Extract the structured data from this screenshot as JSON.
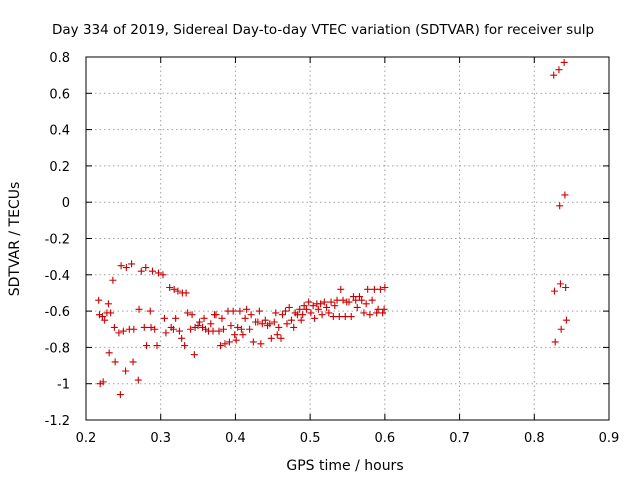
{
  "chart_data": {
    "type": "scatter",
    "title": "Day 334 of 2019, Sidereal Day-to-day VTEC variation (SDTVAR) for receiver sulp",
    "xlabel": "GPS time / hours",
    "ylabel": "SDTVAR / TECUs",
    "xlim": [
      0.2,
      0.9
    ],
    "ylim": [
      -1.2,
      0.8
    ],
    "xticks": [
      0.2,
      0.3,
      0.4,
      0.5,
      0.6,
      0.7,
      0.8,
      0.9
    ],
    "xtick_labels": [
      "0.2",
      "0.3",
      "0.4",
      "0.5",
      "0.6",
      "0.7",
      "0.8",
      "0.9"
    ],
    "yticks": [
      -1.2,
      -1,
      -0.8,
      -0.6,
      -0.4,
      -0.2,
      0,
      0.2,
      0.4,
      0.6,
      0.8
    ],
    "ytick_labels": [
      "-1.2",
      "-1",
      "-0.8",
      "-0.6",
      "-0.4",
      "-0.2",
      "0",
      "0.2",
      "0.4",
      "0.6",
      "0.8"
    ],
    "grid": true,
    "marker": "+",
    "marker_color": "#cc0000",
    "points": [
      [
        0.217,
        -0.54
      ],
      [
        0.218,
        -0.62
      ],
      [
        0.219,
        -1.0
      ],
      [
        0.222,
        -0.63
      ],
      [
        0.223,
        -0.99
      ],
      [
        0.225,
        -0.65
      ],
      [
        0.228,
        -0.61
      ],
      [
        0.23,
        -0.56
      ],
      [
        0.231,
        -0.83
      ],
      [
        0.233,
        -0.61
      ],
      [
        0.236,
        -0.43
      ],
      [
        0.238,
        -0.69
      ],
      [
        0.239,
        -0.88
      ],
      [
        0.244,
        -0.72
      ],
      [
        0.246,
        -1.06
      ],
      [
        0.247,
        -0.35
      ],
      [
        0.25,
        -0.71
      ],
      [
        0.253,
        -0.93
      ],
      [
        0.254,
        -0.36
      ],
      [
        0.258,
        -0.7
      ],
      [
        0.261,
        -0.34
      ],
      [
        0.263,
        -0.88
      ],
      [
        0.264,
        -0.7
      ],
      [
        0.27,
        -0.98
      ],
      [
        0.271,
        -0.59
      ],
      [
        0.274,
        -0.38
      ],
      [
        0.278,
        -0.69
      ],
      [
        0.28,
        -0.36
      ],
      [
        0.281,
        -0.79
      ],
      [
        0.286,
        -0.6
      ],
      [
        0.287,
        -0.69
      ],
      [
        0.289,
        -0.38
      ],
      [
        0.292,
        -0.7
      ],
      [
        0.295,
        -0.79
      ],
      [
        0.297,
        -0.39
      ],
      [
        0.303,
        -0.4
      ],
      [
        0.305,
        -0.64
      ],
      [
        0.307,
        -0.72
      ],
      [
        0.312,
        -0.47
      ],
      [
        0.314,
        -0.69
      ],
      [
        0.317,
        -0.7
      ],
      [
        0.318,
        -0.48
      ],
      [
        0.32,
        -0.64
      ],
      [
        0.323,
        -0.49
      ],
      [
        0.325,
        -0.71
      ],
      [
        0.328,
        -0.75
      ],
      [
        0.329,
        -0.5
      ],
      [
        0.332,
        -0.79
      ],
      [
        0.334,
        -0.5
      ],
      [
        0.336,
        -0.61
      ],
      [
        0.34,
        -0.7
      ],
      [
        0.342,
        -0.62
      ],
      [
        0.345,
        -0.84
      ],
      [
        0.346,
        -0.69
      ],
      [
        0.35,
        -0.68
      ],
      [
        0.352,
        -0.66
      ],
      [
        0.356,
        -0.69
      ],
      [
        0.358,
        -0.64
      ],
      [
        0.36,
        -0.7
      ],
      [
        0.364,
        -0.71
      ],
      [
        0.367,
        -0.67
      ],
      [
        0.37,
        -0.71
      ],
      [
        0.372,
        -0.62
      ],
      [
        0.374,
        -0.62
      ],
      [
        0.378,
        -0.71
      ],
      [
        0.38,
        -0.79
      ],
      [
        0.382,
        -0.64
      ],
      [
        0.384,
        -0.7
      ],
      [
        0.386,
        -0.78
      ],
      [
        0.39,
        -0.6
      ],
      [
        0.392,
        -0.77
      ],
      [
        0.394,
        -0.68
      ],
      [
        0.397,
        -0.6
      ],
      [
        0.399,
        -0.73
      ],
      [
        0.401,
        -0.76
      ],
      [
        0.403,
        -0.69
      ],
      [
        0.406,
        -0.6
      ],
      [
        0.408,
        -0.7
      ],
      [
        0.41,
        -0.73
      ],
      [
        0.413,
        -0.64
      ],
      [
        0.415,
        -0.59
      ],
      [
        0.419,
        -0.7
      ],
      [
        0.421,
        -0.62
      ],
      [
        0.424,
        -0.77
      ],
      [
        0.427,
        -0.66
      ],
      [
        0.43,
        -0.66
      ],
      [
        0.432,
        -0.6
      ],
      [
        0.434,
        -0.78
      ],
      [
        0.436,
        -0.67
      ],
      [
        0.44,
        -0.65
      ],
      [
        0.443,
        -0.68
      ],
      [
        0.446,
        -0.67
      ],
      [
        0.448,
        -0.75
      ],
      [
        0.452,
        -0.66
      ],
      [
        0.454,
        -0.61
      ],
      [
        0.456,
        -0.73
      ],
      [
        0.458,
        -0.69
      ],
      [
        0.461,
        -0.75
      ],
      [
        0.463,
        -0.62
      ],
      [
        0.467,
        -0.6
      ],
      [
        0.469,
        -0.67
      ],
      [
        0.472,
        -0.58
      ],
      [
        0.475,
        -0.65
      ],
      [
        0.478,
        -0.69
      ],
      [
        0.48,
        -0.61
      ],
      [
        0.483,
        -0.62
      ],
      [
        0.486,
        -0.59
      ],
      [
        0.488,
        -0.65
      ],
      [
        0.49,
        -0.62
      ],
      [
        0.492,
        -0.57
      ],
      [
        0.495,
        -0.59
      ],
      [
        0.498,
        -0.55
      ],
      [
        0.501,
        -0.61
      ],
      [
        0.504,
        -0.57
      ],
      [
        0.506,
        -0.64
      ],
      [
        0.509,
        -0.56
      ],
      [
        0.511,
        -0.59
      ],
      [
        0.514,
        -0.56
      ],
      [
        0.516,
        -0.62
      ],
      [
        0.519,
        -0.55
      ],
      [
        0.522,
        -0.58
      ],
      [
        0.525,
        -0.61
      ],
      [
        0.528,
        -0.55
      ],
      [
        0.531,
        -0.63
      ],
      [
        0.533,
        -0.57
      ],
      [
        0.536,
        -0.54
      ],
      [
        0.539,
        -0.63
      ],
      [
        0.541,
        -0.48
      ],
      [
        0.544,
        -0.54
      ],
      [
        0.547,
        -0.63
      ],
      [
        0.549,
        -0.55
      ],
      [
        0.552,
        -0.55
      ],
      [
        0.555,
        -0.63
      ],
      [
        0.558,
        -0.52
      ],
      [
        0.561,
        -0.54
      ],
      [
        0.563,
        -0.58
      ],
      [
        0.566,
        -0.52
      ],
      [
        0.569,
        -0.54
      ],
      [
        0.572,
        -0.61
      ],
      [
        0.575,
        -0.56
      ],
      [
        0.577,
        -0.48
      ],
      [
        0.58,
        -0.62
      ],
      [
        0.583,
        -0.54
      ],
      [
        0.586,
        -0.48
      ],
      [
        0.589,
        -0.61
      ],
      [
        0.591,
        -0.59
      ],
      [
        0.594,
        -0.48
      ],
      [
        0.597,
        -0.61
      ],
      [
        0.599,
        -0.59
      ],
      [
        0.6,
        -0.47
      ],
      [
        0.826,
        0.7
      ],
      [
        0.827,
        -0.49
      ],
      [
        0.828,
        -0.77
      ],
      [
        0.833,
        0.73
      ],
      [
        0.834,
        -0.02
      ],
      [
        0.835,
        -0.45
      ],
      [
        0.836,
        -0.7
      ],
      [
        0.84,
        0.77
      ],
      [
        0.841,
        0.04
      ],
      [
        0.842,
        -0.47
      ],
      [
        0.843,
        -0.65
      ]
    ]
  }
}
